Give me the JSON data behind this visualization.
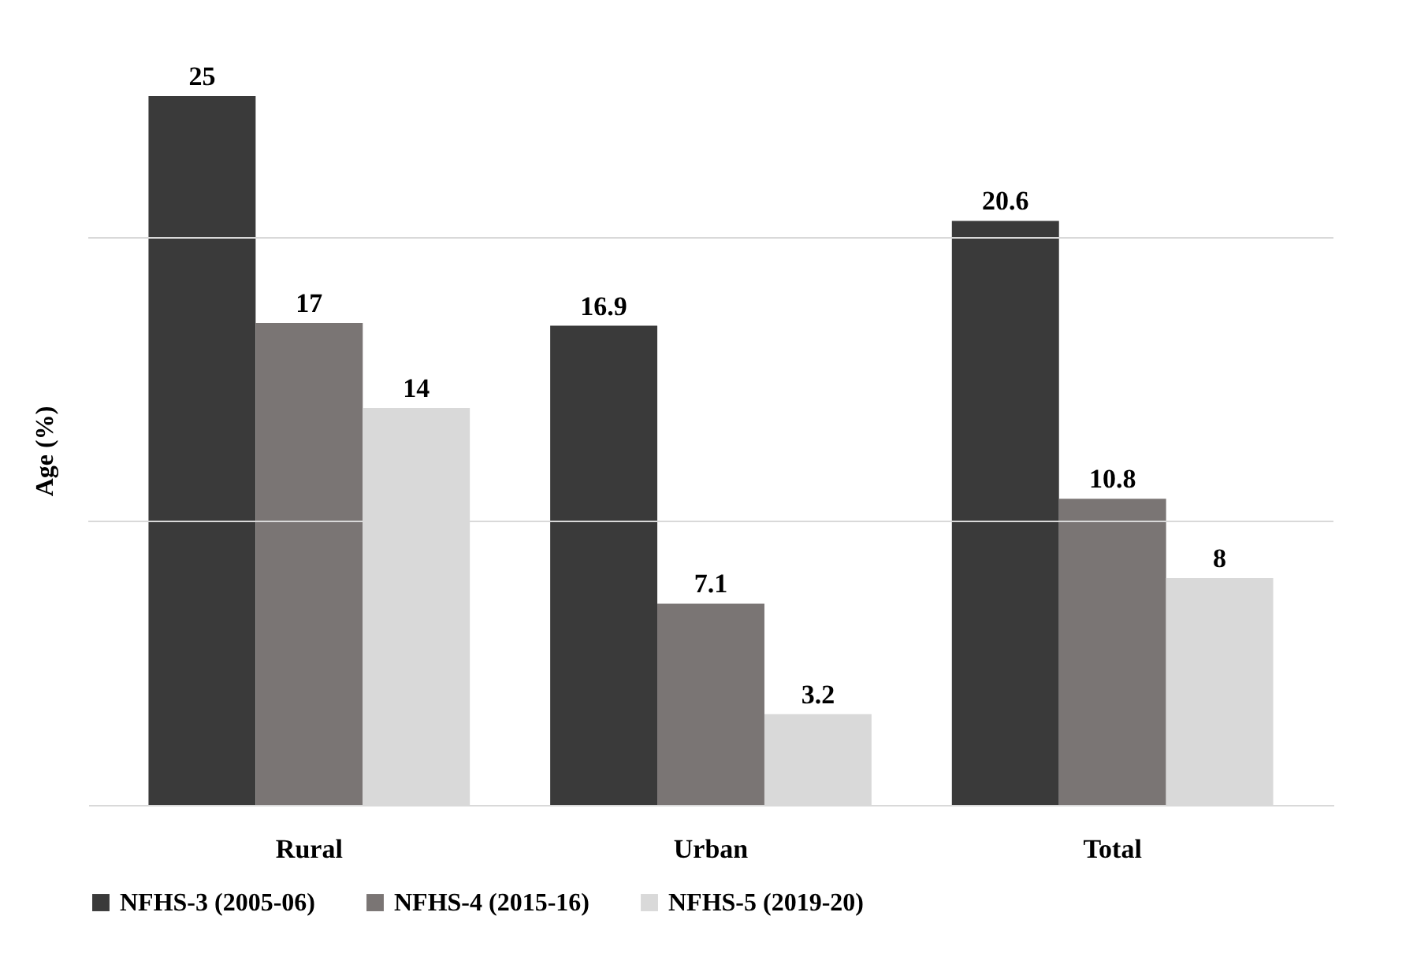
{
  "chart_data": {
    "type": "bar",
    "ylabel": "Age (%)",
    "categories": [
      "Rural",
      "Urban",
      "Total"
    ],
    "series": [
      {
        "name": "NFHS-3 (2005-06)",
        "color": "#3a3a3a",
        "values": [
          25,
          16.9,
          20.6
        ]
      },
      {
        "name": "NFHS-4 (2015-16)",
        "color": "#7a7574",
        "values": [
          17,
          7.1,
          10.8
        ]
      },
      {
        "name": "NFHS-5 (2019-20)",
        "color": "#d9d9d9",
        "values": [
          14,
          3.2,
          8
        ]
      }
    ],
    "data_labels": true,
    "legend": "bottom",
    "tick_labels": "x",
    "ref_lines": [
      {
        "axis": "y",
        "value": 10,
        "color": "#d9d9d9"
      },
      {
        "axis": "y",
        "value": 20,
        "color": "#d9d9d9"
      }
    ]
  }
}
